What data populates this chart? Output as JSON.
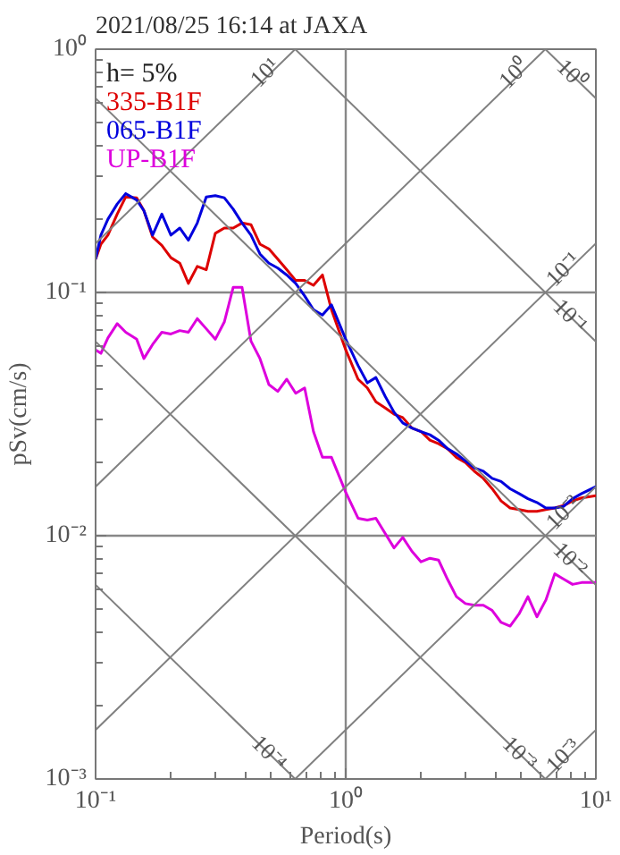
{
  "chart_data": {
    "type": "line",
    "title": "2021/08/25 16:14 at JAXA",
    "xlabel": "Period(s)",
    "ylabel": "pSv(cm/s)",
    "annotations": [
      "h= 5%"
    ],
    "log": "xy",
    "grid": true,
    "legend": "top left",
    "xlim": [
      0.1,
      10
    ],
    "ylim": [
      0.001,
      1
    ],
    "xticks": [
      {
        "value": 0.1,
        "label": "10⁻¹"
      },
      {
        "value": 1,
        "label": "10⁰"
      },
      {
        "value": 10,
        "label": "10¹"
      }
    ],
    "yticks": [
      {
        "value": 0.001,
        "label": "10⁻³"
      },
      {
        "value": 0.01,
        "label": "10⁻²"
      },
      {
        "value": 0.1,
        "label": "10⁻¹"
      },
      {
        "value": 1,
        "label": "10⁰"
      }
    ],
    "x": [
      0.1,
      0.105,
      0.112,
      0.122,
      0.132,
      0.146,
      0.156,
      0.169,
      0.184,
      0.2,
      0.217,
      0.235,
      0.255,
      0.277,
      0.301,
      0.327,
      0.355,
      0.385,
      0.418,
      0.454,
      0.493,
      0.535,
      0.581,
      0.631,
      0.685,
      0.743,
      0.807,
      0.877,
      1.0,
      1.12,
      1.22,
      1.32,
      1.44,
      1.56,
      1.69,
      1.84,
      2.0,
      2.17,
      2.35,
      2.55,
      2.77,
      3.01,
      3.27,
      3.55,
      3.85,
      4.18,
      4.54,
      4.93,
      5.35,
      5.81,
      6.31,
      6.85,
      7.43,
      8.07,
      8.77,
      10
    ],
    "series": [
      {
        "name": "335-B1F",
        "color": "#dd0000",
        "values": [
          0.137,
          0.158,
          0.172,
          0.21,
          0.247,
          0.245,
          0.217,
          0.169,
          0.156,
          0.139,
          0.132,
          0.109,
          0.128,
          0.124,
          0.175,
          0.184,
          0.184,
          0.193,
          0.19,
          0.158,
          0.151,
          0.137,
          0.124,
          0.112,
          0.112,
          0.107,
          0.118,
          0.0849,
          0.0581,
          0.044,
          0.0405,
          0.0355,
          0.0335,
          0.0316,
          0.0306,
          0.0277,
          0.0268,
          0.0247,
          0.0239,
          0.0228,
          0.021,
          0.02,
          0.0184,
          0.0172,
          0.0156,
          0.0139,
          0.013,
          0.0128,
          0.0126,
          0.0126,
          0.0128,
          0.013,
          0.0133,
          0.0139,
          0.0143,
          0.0146
        ]
      },
      {
        "name": "065-B1F",
        "color": "#0000dd",
        "values": [
          0.137,
          0.172,
          0.2,
          0.231,
          0.255,
          0.24,
          0.217,
          0.172,
          0.21,
          0.172,
          0.184,
          0.164,
          0.193,
          0.247,
          0.25,
          0.245,
          0.22,
          0.193,
          0.172,
          0.144,
          0.132,
          0.126,
          0.118,
          0.109,
          0.0968,
          0.0849,
          0.0808,
          0.089,
          0.0642,
          0.0501,
          0.0425,
          0.0447,
          0.0373,
          0.0322,
          0.0291,
          0.0277,
          0.0268,
          0.026,
          0.0247,
          0.0228,
          0.0217,
          0.0203,
          0.019,
          0.0184,
          0.0172,
          0.0167,
          0.0156,
          0.0149,
          0.0142,
          0.0137,
          0.013,
          0.013,
          0.0132,
          0.0142,
          0.0149,
          0.0159
        ]
      },
      {
        "name": "UP-B1F",
        "color": "#dd00dd",
        "values": [
          0.0581,
          0.0562,
          0.065,
          0.0744,
          0.0686,
          0.0642,
          0.0535,
          0.0611,
          0.0686,
          0.0675,
          0.0697,
          0.0686,
          0.0781,
          0.0709,
          0.0642,
          0.0756,
          0.105,
          0.105,
          0.0631,
          0.0535,
          0.0418,
          0.0392,
          0.044,
          0.0385,
          0.0405,
          0.0268,
          0.021,
          0.021,
          0.0151,
          0.0118,
          0.0116,
          0.0118,
          0.0102,
          0.00891,
          0.00984,
          0.00862,
          0.00781,
          0.00808,
          0.00794,
          0.00663,
          0.00562,
          0.00526,
          0.00518,
          0.00518,
          0.00493,
          0.0044,
          0.00425,
          0.00477,
          0.00562,
          0.00464,
          0.00544,
          0.00697,
          0.00663,
          0.00631,
          0.00642,
          0.00642
        ]
      },
      {
        "name": "10¹",
        "color": "#808080",
        "x": [
          0.1,
          0.628
        ],
        "values": [
          0.159,
          1
        ]
      },
      {
        "name": "10⁰",
        "color": "#808080",
        "x": [
          0.1,
          6.28
        ],
        "values": [
          0.0159,
          1
        ]
      },
      {
        "name": "10⁻¹",
        "color": "#808080",
        "x": [
          0.1,
          10
        ],
        "values": [
          0.00159,
          0.159
        ]
      },
      {
        "name": "10⁻²",
        "color": "#808080",
        "x": [
          0.628,
          10
        ],
        "values": [
          0.001,
          0.0159
        ]
      },
      {
        "name": "10⁻³",
        "color": "#808080",
        "x": [
          6.28,
          10
        ],
        "values": [
          0.001,
          0.00159
        ]
      },
      {
        "name": "10⁰",
        "color": "#808080",
        "x": [
          6.28,
          10
        ],
        "values": [
          1,
          0.628
        ]
      },
      {
        "name": "10⁻¹",
        "color": "#808080",
        "x": [
          0.628,
          10
        ],
        "values": [
          1,
          0.0628
        ]
      },
      {
        "name": "10⁻²",
        "color": "#808080",
        "x": [
          0.1,
          10
        ],
        "values": [
          0.628,
          0.00628
        ]
      },
      {
        "name": "10⁻³",
        "color": "#808080",
        "x": [
          0.1,
          6.28
        ],
        "values": [
          0.0628,
          0.001
        ]
      },
      {
        "name": "10⁻⁴",
        "color": "#808080",
        "x": [
          0.1,
          0.628
        ],
        "values": [
          0.00628,
          0.001
        ]
      }
    ]
  }
}
